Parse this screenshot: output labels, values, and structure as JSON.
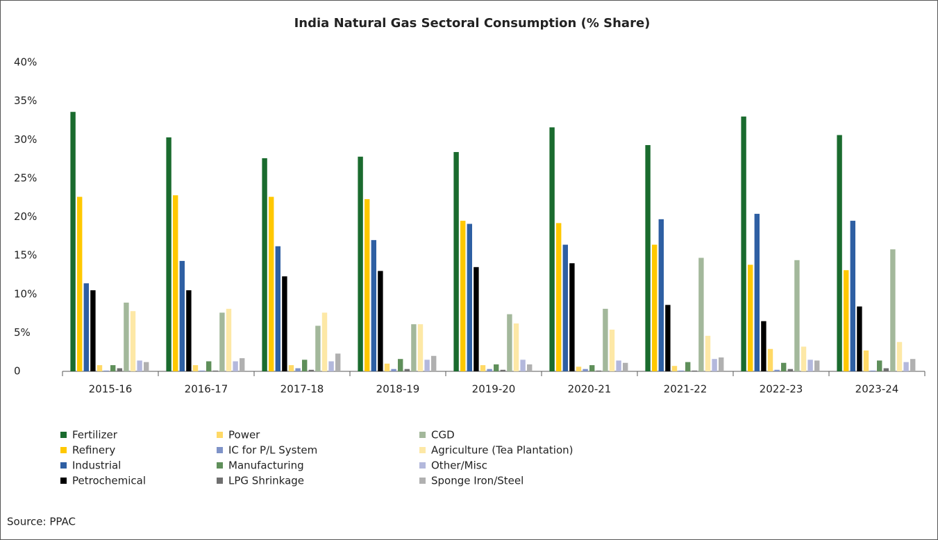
{
  "chart_data": {
    "type": "bar",
    "title": "India Natural Gas Sectoral Consumption (% Share)",
    "source": "Source: PPAC",
    "categories": [
      "2015-16",
      "2016-17",
      "2017-18",
      "2018-19",
      "2019-20",
      "2020-21",
      "2021-22",
      "2022-23",
      "2023-24"
    ],
    "series": [
      {
        "name": "Fertilizer",
        "color": "#1a6b2e",
        "values": [
          33.6,
          30.3,
          27.6,
          27.8,
          28.4,
          31.6,
          29.3,
          33.0,
          30.6
        ]
      },
      {
        "name": "Refinery",
        "color": "#ffc800",
        "values": [
          22.6,
          22.8,
          22.6,
          22.3,
          19.5,
          19.2,
          16.4,
          13.8,
          13.1
        ]
      },
      {
        "name": "Industrial",
        "color": "#2e5fa3",
        "values": [
          11.4,
          14.3,
          16.2,
          17.0,
          19.1,
          16.4,
          19.7,
          20.4,
          19.5
        ]
      },
      {
        "name": "Petrochemical",
        "color": "#000000",
        "values": [
          10.5,
          10.5,
          12.3,
          13.0,
          13.5,
          14.0,
          8.6,
          6.5,
          8.4
        ]
      },
      {
        "name": "Power",
        "color": "#ffd966",
        "values": [
          0.8,
          0.8,
          0.8,
          1.0,
          0.8,
          0.6,
          0.7,
          2.9,
          2.7
        ]
      },
      {
        "name": "IC for P/L System",
        "color": "#7f93c8",
        "values": [
          0.1,
          0.1,
          0.4,
          0.3,
          0.3,
          0.3,
          0.1,
          0.2,
          0.1
        ]
      },
      {
        "name": "Manufacturing",
        "color": "#5f8f5a",
        "values": [
          0.8,
          1.3,
          1.5,
          1.6,
          0.9,
          0.8,
          1.2,
          1.1,
          1.4
        ]
      },
      {
        "name": "LPG Shrinkage",
        "color": "#6f6f6f",
        "values": [
          0.4,
          0.1,
          0.2,
          0.3,
          0.2,
          0.1,
          0.1,
          0.3,
          0.4
        ]
      },
      {
        "name": "CGD",
        "color": "#a3b89b",
        "values": [
          8.9,
          7.6,
          5.9,
          6.1,
          7.4,
          8.1,
          14.7,
          14.4,
          15.8
        ]
      },
      {
        "name": "Agriculture (Tea Plantation)",
        "color": "#fde8a6",
        "values": [
          7.8,
          8.1,
          7.6,
          6.1,
          6.2,
          5.4,
          4.6,
          3.2,
          3.8
        ]
      },
      {
        "name": "Other/Misc",
        "color": "#b3b8dc",
        "values": [
          1.4,
          1.3,
          1.3,
          1.5,
          1.5,
          1.4,
          1.6,
          1.5,
          1.2
        ]
      },
      {
        "name": "Sponge Iron/Steel",
        "color": "#b0b0b0",
        "values": [
          1.2,
          1.7,
          2.3,
          2.0,
          0.9,
          1.1,
          1.8,
          1.4,
          1.6
        ]
      }
    ],
    "ylim": [
      0,
      40
    ],
    "yticks": [
      0,
      {
        "value": 5,
        "label": "5%"
      },
      {
        "value": 10,
        "label": "10%"
      },
      {
        "value": 15,
        "label": "15%"
      },
      {
        "value": 20,
        "label": "20%"
      },
      {
        "value": 25,
        "label": "25%"
      },
      {
        "value": 30,
        "label": "30%"
      },
      {
        "value": 35,
        "label": "35%"
      },
      {
        "value": 40,
        "label": "40%"
      }
    ],
    "grid": false
  }
}
